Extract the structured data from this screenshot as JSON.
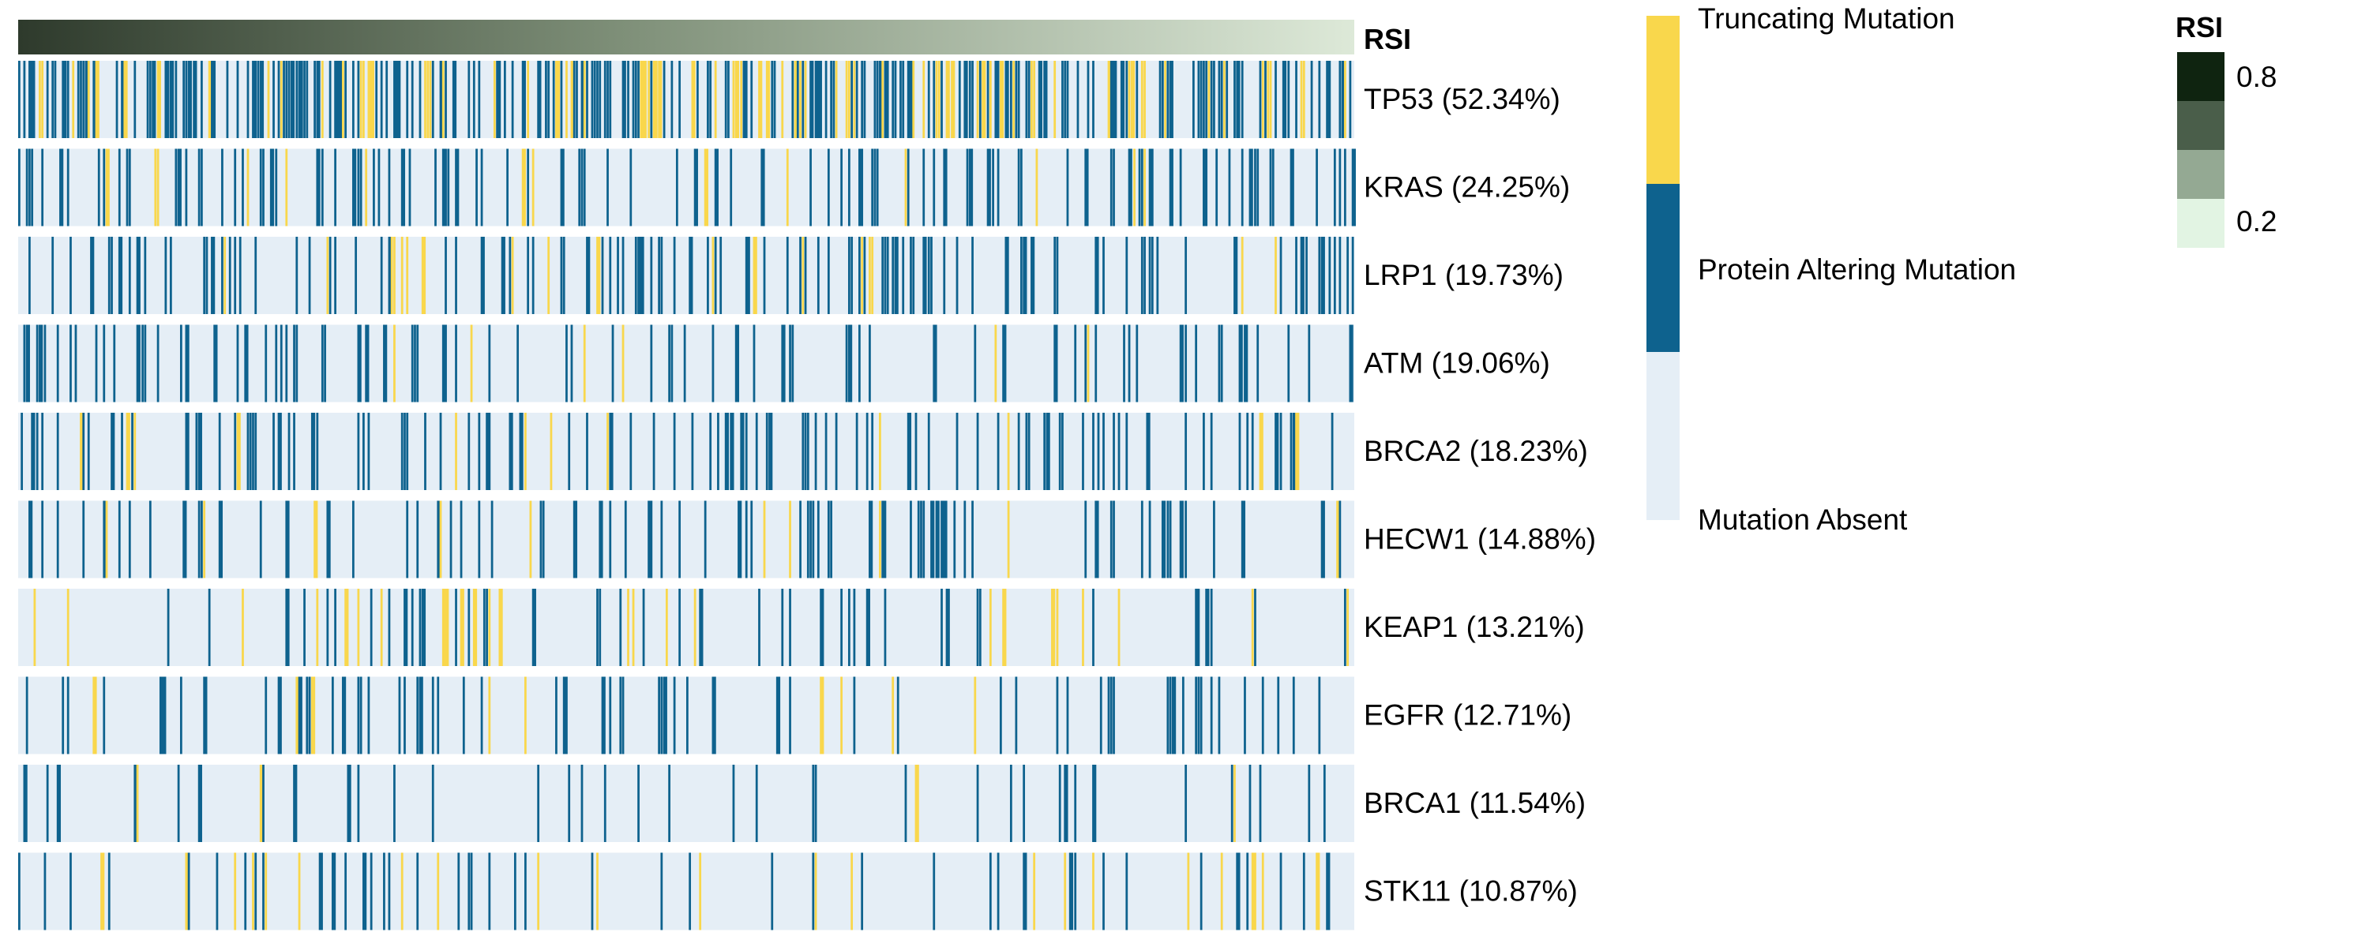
{
  "chart_data": {
    "type": "heatmap",
    "title": "",
    "rsi_track": {
      "label": "RSI",
      "start_value": 0.8,
      "end_value": 0.2
    },
    "genes": [
      {
        "name": "TP53",
        "label": "TP53 (52.34%)",
        "frequency": 52.34
      },
      {
        "name": "KRAS",
        "label": "KRAS (24.25%)",
        "frequency": 24.25
      },
      {
        "name": "LRP1",
        "label": "LRP1 (19.73%)",
        "frequency": 19.73
      },
      {
        "name": "ATM",
        "label": "ATM (19.06%)",
        "frequency": 19.06
      },
      {
        "name": "BRCA2",
        "label": "BRCA2 (18.23%)",
        "frequency": 18.23
      },
      {
        "name": "HECW1",
        "label": "HECW1 (14.88%)",
        "frequency": 14.88
      },
      {
        "name": "KEAP1",
        "label": "KEAP1 (13.21%)",
        "frequency": 13.21
      },
      {
        "name": "EGFR",
        "label": "EGFR (12.71%)",
        "frequency": 12.71
      },
      {
        "name": "BRCA1",
        "label": "BRCA1 (11.54%)",
        "frequency": 11.54
      },
      {
        "name": "STK11",
        "label": "STK11 (10.87%)",
        "frequency": 10.87
      }
    ],
    "mutation_legend": [
      {
        "label": "Truncating Mutation",
        "color": "#f9d74c"
      },
      {
        "label": "Protein Altering Mutation",
        "color": "#0e628e"
      },
      {
        "label": "Mutation Absent",
        "color": "#e5eef6"
      }
    ],
    "rsi_legend": {
      "title": "RSI",
      "ticks": [
        "0.8",
        "0.2"
      ],
      "colors": [
        "#0f2410",
        "#4a5e4a",
        "#94a993",
        "#e2f4e3"
      ]
    }
  }
}
